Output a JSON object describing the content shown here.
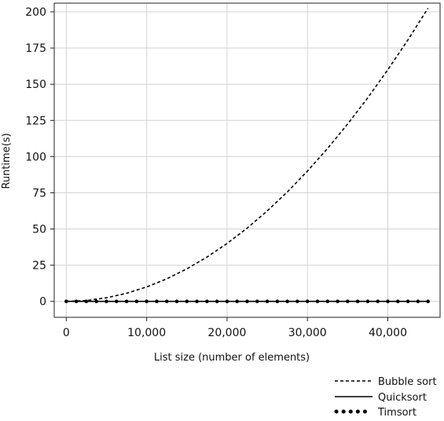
{
  "chart_data": {
    "type": "line",
    "title": "",
    "xlabel": "List size (number of elements)",
    "ylabel": "Runtime(s)",
    "xlim": [
      -1500,
      46500
    ],
    "ylim": [
      -11,
      206
    ],
    "xticks": [
      0,
      10000,
      20000,
      30000,
      40000
    ],
    "xtick_labels": [
      "0",
      "10,000",
      "20,000",
      "30,000",
      "40,000"
    ],
    "yticks": [
      0,
      25,
      50,
      75,
      100,
      125,
      150,
      175,
      200
    ],
    "ytick_labels": [
      "0",
      "25",
      "50",
      "75",
      "100",
      "125",
      "150",
      "175",
      "200"
    ],
    "grid": true,
    "legend_position": "below-right",
    "series": [
      {
        "name": "Bubble sort",
        "style": "dashed",
        "color": "#000000",
        "x": [
          0,
          2500,
          5000,
          7500,
          10000,
          12500,
          15000,
          17500,
          20000,
          22500,
          25000,
          27500,
          30000,
          32500,
          35000,
          37500,
          40000,
          42500,
          45000
        ],
        "y": [
          0,
          0.6,
          2.5,
          5.6,
          10,
          15.6,
          22.5,
          30.6,
          40,
          50.6,
          62.5,
          75.6,
          90,
          105.6,
          122.5,
          140.6,
          160,
          180.6,
          202.5
        ]
      },
      {
        "name": "Quicksort",
        "style": "solid",
        "color": "#000000",
        "x": [
          0,
          2500,
          5000,
          7500,
          10000,
          12500,
          15000,
          17500,
          20000,
          22500,
          25000,
          27500,
          30000,
          32500,
          35000,
          37500,
          40000,
          42500,
          45000
        ],
        "y": [
          0,
          0,
          0,
          0,
          0,
          0,
          0,
          0,
          0,
          0,
          0,
          0,
          0,
          0,
          0,
          0,
          0,
          0,
          0
        ]
      },
      {
        "name": "Timsort",
        "style": "dotted",
        "color": "#000000",
        "x": [
          0,
          1250,
          2500,
          3750,
          5000,
          6250,
          7500,
          8750,
          10000,
          11250,
          12500,
          13750,
          15000,
          16250,
          17500,
          18750,
          20000,
          21250,
          22500,
          23750,
          25000,
          26250,
          27500,
          28750,
          30000,
          31250,
          32500,
          33750,
          35000,
          36250,
          37500,
          38750,
          40000,
          41250,
          42500,
          43750,
          45000
        ],
        "y": [
          0,
          0,
          0,
          0,
          0,
          0,
          0,
          0,
          0,
          0,
          0,
          0,
          0,
          0,
          0,
          0,
          0,
          0,
          0,
          0,
          0,
          0,
          0,
          0,
          0,
          0,
          0,
          0,
          0,
          0,
          0,
          0,
          0,
          0,
          0,
          0,
          0
        ]
      }
    ]
  }
}
